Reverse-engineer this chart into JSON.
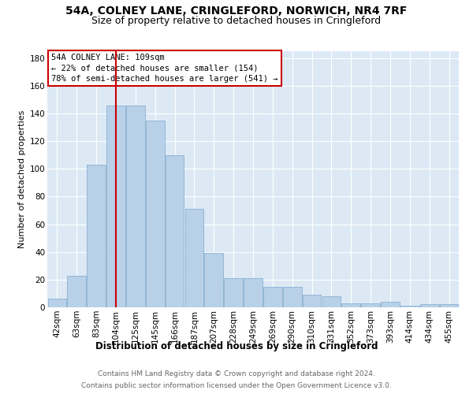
{
  "title": "54A, COLNEY LANE, CRINGLEFORD, NORWICH, NR4 7RF",
  "subtitle": "Size of property relative to detached houses in Cringleford",
  "xlabel": "Distribution of detached houses by size in Cringleford",
  "ylabel": "Number of detached properties",
  "categories": [
    "42sqm",
    "63sqm",
    "83sqm",
    "104sqm",
    "125sqm",
    "145sqm",
    "166sqm",
    "187sqm",
    "207sqm",
    "228sqm",
    "249sqm",
    "269sqm",
    "290sqm",
    "310sqm",
    "331sqm",
    "352sqm",
    "373sqm",
    "393sqm",
    "414sqm",
    "434sqm",
    "455sqm"
  ],
  "values": [
    6,
    23,
    103,
    146,
    146,
    135,
    110,
    71,
    39,
    21,
    21,
    15,
    15,
    9,
    8,
    3,
    3,
    4,
    1,
    2,
    2
  ],
  "bar_color": "#b8d0e8",
  "bar_edgecolor": "#8ab0d0",
  "vline_x": 3.0,
  "vline_color": "#cc0000",
  "annotation_text": "54A COLNEY LANE: 109sqm\n← 22% of detached houses are smaller (154)\n78% of semi-detached houses are larger (541) →",
  "annotation_box_color": "#cc0000",
  "ylim": [
    0,
    185
  ],
  "yticks": [
    0,
    20,
    40,
    60,
    80,
    100,
    120,
    140,
    160,
    180
  ],
  "footer_line1": "Contains HM Land Registry data © Crown copyright and database right 2024.",
  "footer_line2": "Contains public sector information licensed under the Open Government Licence v3.0.",
  "title_fontsize": 10,
  "subtitle_fontsize": 9,
  "xlabel_fontsize": 8.5,
  "ylabel_fontsize": 8,
  "tick_fontsize": 7.5,
  "annotation_fontsize": 7.5,
  "footer_fontsize": 6.5,
  "bg_color": "#dce9f5",
  "fig_bg_color": "#ffffff",
  "grid_color": "#c8d8e8"
}
